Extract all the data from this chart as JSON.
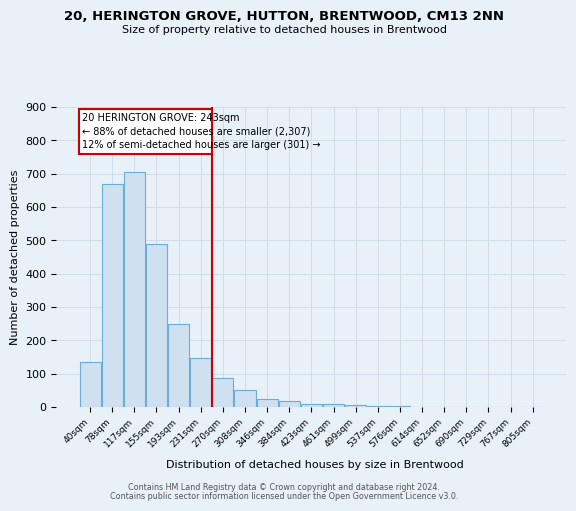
{
  "title1": "20, HERINGTON GROVE, HUTTON, BRENTWOOD, CM13 2NN",
  "title2": "Size of property relative to detached houses in Brentwood",
  "xlabel": "Distribution of detached houses by size in Brentwood",
  "ylabel": "Number of detached properties",
  "bar_labels": [
    "40sqm",
    "78sqm",
    "117sqm",
    "155sqm",
    "193sqm",
    "231sqm",
    "270sqm",
    "308sqm",
    "346sqm",
    "384sqm",
    "423sqm",
    "461sqm",
    "499sqm",
    "537sqm",
    "576sqm",
    "614sqm",
    "652sqm",
    "690sqm",
    "729sqm",
    "767sqm",
    "805sqm"
  ],
  "bar_heights": [
    135,
    670,
    705,
    490,
    250,
    147,
    87,
    50,
    23,
    18,
    10,
    8,
    5,
    3,
    2,
    1,
    1,
    1,
    0,
    0,
    0
  ],
  "bar_color": "#cfe0f0",
  "bar_edge_color": "#6aaed6",
  "annotation_line1": "20 HERINGTON GROVE: 243sqm",
  "annotation_line2": "← 88% of detached houses are smaller (2,307)",
  "annotation_line3": "12% of semi-detached houses are larger (301) →",
  "vline_color": "#cc0000",
  "annotation_box_color": "#cc0000",
  "ylim": [
    0,
    900
  ],
  "yticks": [
    0,
    100,
    200,
    300,
    400,
    500,
    600,
    700,
    800,
    900
  ],
  "footer1": "Contains HM Land Registry data © Crown copyright and database right 2024.",
  "footer2": "Contains public sector information licensed under the Open Government Licence v3.0.",
  "bg_color": "#e8f0f8",
  "plot_bg_color": "#e8f0f8",
  "grid_color": "#d0dce8"
}
